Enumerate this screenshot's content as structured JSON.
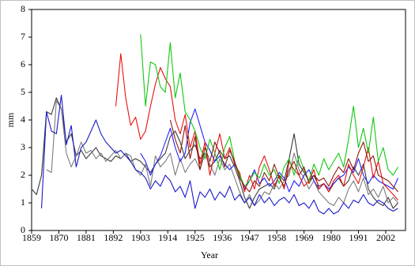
{
  "chart_data": {
    "type": "line",
    "xlabel": "Year",
    "ylabel": "mm",
    "xlim": [
      1859,
      2010
    ],
    "ylim": [
      0,
      8
    ],
    "xticks": [
      1859,
      1870,
      1881,
      1892,
      1903,
      1914,
      1925,
      1936,
      1947,
      1958,
      1969,
      1980,
      1991,
      2002
    ],
    "yticks": [
      0,
      1,
      2,
      3,
      4,
      5,
      6,
      7,
      8
    ],
    "x": [
      1859,
      1861,
      1863,
      1865,
      1867,
      1869,
      1871,
      1873,
      1875,
      1877,
      1879,
      1881,
      1883,
      1885,
      1887,
      1889,
      1891,
      1893,
      1895,
      1897,
      1899,
      1901,
      1903,
      1905,
      1907,
      1909,
      1911,
      1913,
      1915,
      1917,
      1919,
      1921,
      1923,
      1925,
      1927,
      1929,
      1931,
      1933,
      1935,
      1937,
      1939,
      1941,
      1943,
      1945,
      1947,
      1949,
      1951,
      1953,
      1955,
      1957,
      1959,
      1961,
      1963,
      1965,
      1967,
      1969,
      1971,
      1973,
      1975,
      1977,
      1979,
      1981,
      1983,
      1985,
      1987,
      1989,
      1991,
      1993,
      1995,
      1997,
      1999,
      2001,
      2003,
      2005,
      2007
    ],
    "series": [
      {
        "color": "#3a3a3a",
        "values": [
          1.5,
          1.3,
          2.0,
          4.3,
          4.2,
          4.8,
          4.4,
          3.2,
          3.5,
          2.7,
          2.9,
          2.6,
          2.8,
          3.0,
          2.7,
          2.6,
          2.5,
          2.7,
          2.6,
          2.8,
          2.5,
          2.6,
          2.5,
          2.3,
          2.1,
          2.4,
          2.6,
          2.8,
          3.4,
          3.6,
          3.2,
          2.6,
          2.9,
          3.1,
          2.6,
          2.8,
          2.3,
          2.5,
          2.9,
          2.6,
          2.7,
          2.3,
          1.8,
          1.2,
          0.8,
          1.2,
          1.5,
          1.6,
          1.7,
          1.5,
          2.0,
          1.8,
          2.6,
          3.5,
          2.4,
          2.1,
          1.8,
          2.0,
          1.6,
          1.7,
          1.4,
          1.7,
          1.9,
          1.6,
          1.8,
          2.3,
          2.0,
          2.4,
          1.5,
          1.2,
          1.0,
          0.9,
          1.2,
          0.8,
          1.0
        ]
      },
      {
        "color": "#7a7a7a",
        "values": [
          null,
          null,
          null,
          2.2,
          2.1,
          4.7,
          4.4,
          2.8,
          2.3,
          2.7,
          3.2,
          2.8,
          2.9,
          2.6,
          2.8,
          2.5,
          2.7,
          2.9,
          2.6,
          2.8,
          2.7,
          2.2,
          2.0,
          2.4,
          1.6,
          2.7,
          2.3,
          2.5,
          2.8,
          2.0,
          2.6,
          2.1,
          2.4,
          2.6,
          2.2,
          2.8,
          2.4,
          2.0,
          2.6,
          2.2,
          2.4,
          1.9,
          1.4,
          1.0,
          1.3,
          0.9,
          1.1,
          1.4,
          1.3,
          1.7,
          1.5,
          1.8,
          2.0,
          2.8,
          2.2,
          1.9,
          1.5,
          1.8,
          1.4,
          1.2,
          1.0,
          0.9,
          1.2,
          1.0,
          1.5,
          1.8,
          1.4,
          1.9,
          1.3,
          1.5,
          1.2,
          1.6,
          1.0,
          1.2,
          1.0
        ]
      },
      {
        "color": "#1a1ac8",
        "values": [
          null,
          null,
          0.8,
          4.3,
          3.6,
          3.5,
          4.9,
          3.1,
          3.8,
          2.3,
          3.0,
          3.2,
          3.6,
          4.0,
          3.5,
          3.2,
          3.0,
          2.8,
          2.9,
          2.7,
          2.5,
          2.2,
          2.1,
          1.9,
          1.5,
          1.8,
          1.6,
          2.0,
          1.8,
          1.4,
          1.6,
          1.2,
          1.8,
          0.8,
          1.4,
          1.2,
          1.5,
          1.1,
          1.4,
          1.2,
          1.6,
          1.1,
          1.3,
          1.0,
          1.2,
          0.9,
          1.3,
          1.0,
          1.2,
          0.9,
          1.1,
          1.2,
          1.0,
          1.3,
          0.9,
          1.0,
          0.8,
          1.1,
          0.7,
          0.6,
          0.8,
          0.6,
          0.7,
          1.0,
          0.8,
          1.1,
          1.0,
          1.3,
          1.0,
          0.9,
          1.1,
          1.0,
          0.8,
          0.7,
          0.8
        ]
      },
      {
        "color": "#2020ff",
        "values": [
          null,
          null,
          null,
          null,
          null,
          null,
          null,
          null,
          null,
          null,
          null,
          null,
          null,
          null,
          null,
          null,
          null,
          null,
          null,
          null,
          null,
          null,
          2.8,
          2.5,
          2.0,
          2.4,
          2.7,
          3.2,
          3.7,
          3.0,
          2.5,
          2.8,
          3.9,
          4.4,
          3.8,
          3.2,
          2.9,
          2.5,
          2.7,
          2.4,
          2.2,
          2.4,
          2.0,
          1.5,
          1.8,
          2.2,
          1.7,
          1.9,
          1.6,
          1.8,
          2.1,
          1.9,
          1.4,
          1.8,
          1.6,
          2.0,
          2.2,
          1.8,
          1.5,
          1.7,
          1.5,
          1.7,
          1.9,
          2.0,
          2.3,
          2.1,
          2.6,
          2.0,
          1.7,
          2.0,
          1.8,
          1.7,
          1.6,
          1.5,
          1.9
        ]
      },
      {
        "color": "#e81010",
        "values": [
          null,
          null,
          null,
          null,
          null,
          null,
          null,
          null,
          null,
          null,
          null,
          null,
          null,
          null,
          null,
          null,
          null,
          4.5,
          6.4,
          4.8,
          3.8,
          4.1,
          3.3,
          3.6,
          4.5,
          5.3,
          5.9,
          5.5,
          5.2,
          4.0,
          3.5,
          4.2,
          3.0,
          3.6,
          2.4,
          3.2,
          2.0,
          2.8,
          3.5,
          2.6,
          3.0,
          2.4,
          2.1,
          1.4,
          2.0,
          1.5,
          2.3,
          2.7,
          2.2,
          1.6,
          2.0,
          1.5,
          2.5,
          2.2,
          2.0,
          1.6,
          1.8,
          2.2,
          1.5,
          1.7,
          1.4,
          1.8,
          2.0,
          1.6,
          2.4,
          2.0,
          1.7,
          2.3,
          3.0,
          1.9,
          2.5,
          1.7,
          1.5,
          1.3,
          1.1
        ]
      },
      {
        "color": "#10c810",
        "values": [
          null,
          null,
          null,
          null,
          null,
          null,
          null,
          null,
          null,
          null,
          null,
          null,
          null,
          null,
          null,
          null,
          null,
          null,
          null,
          null,
          null,
          null,
          7.1,
          4.5,
          6.1,
          6.0,
          5.2,
          5.0,
          6.8,
          4.8,
          5.7,
          4.3,
          4.0,
          3.6,
          3.0,
          2.6,
          3.3,
          2.8,
          2.2,
          3.0,
          3.4,
          2.5,
          2.0,
          1.6,
          1.8,
          2.1,
          1.9,
          2.4,
          2.0,
          2.2,
          1.7,
          2.3,
          2.6,
          2.0,
          2.7,
          2.2,
          1.8,
          2.4,
          2.0,
          2.6,
          2.2,
          2.5,
          2.8,
          2.3,
          3.3,
          4.5,
          3.0,
          3.7,
          2.8,
          4.1,
          2.5,
          3.0,
          2.2,
          2.0,
          2.3
        ]
      },
      {
        "color": "#8a1a10",
        "values": [
          null,
          null,
          null,
          null,
          null,
          null,
          null,
          null,
          null,
          null,
          null,
          null,
          null,
          null,
          null,
          null,
          null,
          null,
          null,
          null,
          null,
          null,
          null,
          null,
          null,
          null,
          null,
          null,
          4.0,
          3.3,
          2.8,
          3.8,
          2.6,
          3.4,
          2.2,
          3.0,
          2.5,
          3.2,
          2.8,
          2.3,
          2.9,
          2.5,
          1.9,
          1.6,
          1.4,
          1.8,
          1.6,
          2.1,
          1.8,
          2.4,
          1.9,
          1.6,
          2.2,
          2.5,
          2.0,
          2.3,
          1.7,
          2.0,
          1.8,
          1.9,
          1.6,
          2.0,
          2.3,
          2.1,
          2.6,
          2.2,
          2.8,
          3.2,
          2.5,
          2.7,
          2.0,
          1.9,
          1.8,
          1.6,
          1.4
        ]
      }
    ]
  }
}
